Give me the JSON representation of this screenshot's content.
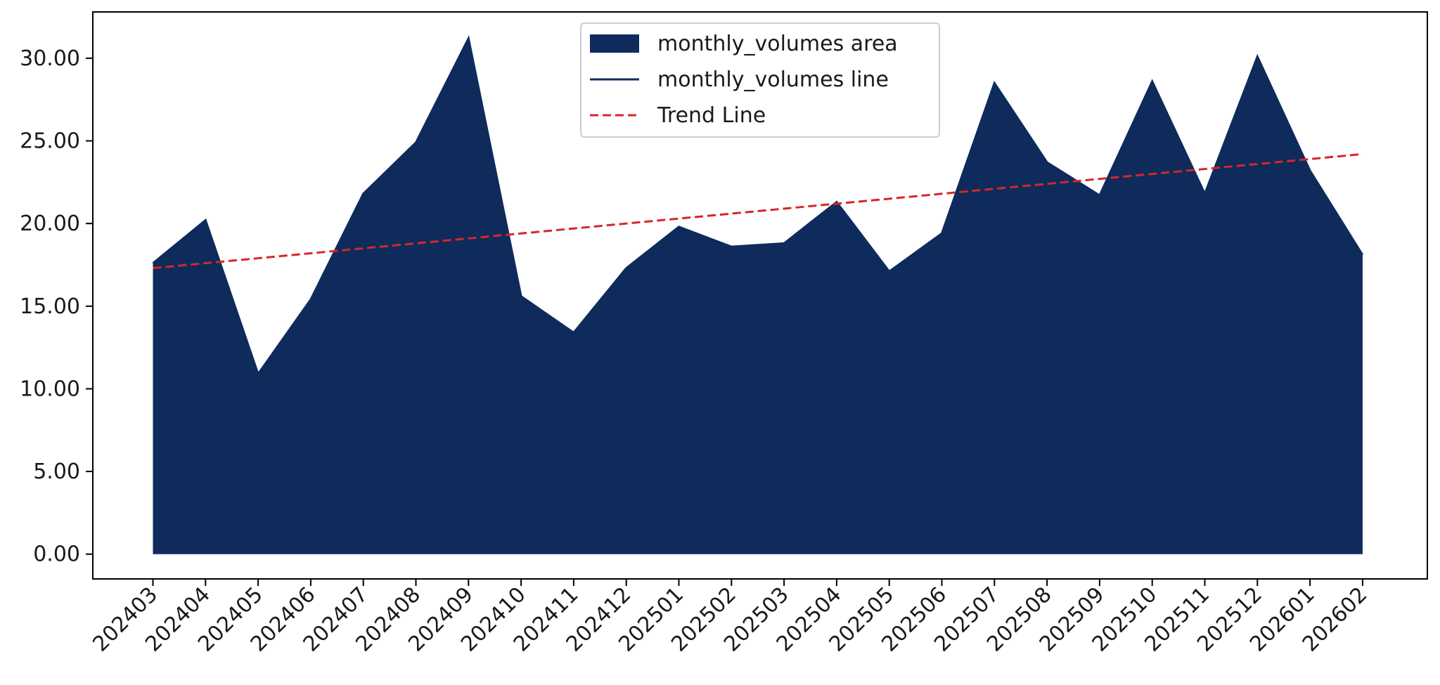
{
  "chart_data": {
    "type": "area",
    "categories": [
      "202403",
      "202404",
      "202405",
      "202406",
      "202407",
      "202408",
      "202409",
      "202410",
      "202411",
      "202412",
      "202501",
      "202502",
      "202503",
      "202504",
      "202505",
      "202506",
      "202507",
      "202508",
      "202509",
      "202510",
      "202511",
      "202512",
      "202601",
      "202602"
    ],
    "series": [
      {
        "name": "monthly_volumes area",
        "style": "filled-area",
        "color": "#0e2b5c",
        "values": [
          17.6,
          20.2,
          10.9,
          15.4,
          21.8,
          24.9,
          31.2,
          15.6,
          13.4,
          17.3,
          19.8,
          18.6,
          18.8,
          21.3,
          17.1,
          19.4,
          28.5,
          23.7,
          21.7,
          28.6,
          21.8,
          30.1,
          23.2,
          18.1
        ]
      },
      {
        "name": "monthly_volumes line",
        "style": "solid-line",
        "color": "#0e2b5c",
        "values": [
          17.6,
          20.2,
          10.9,
          15.4,
          21.8,
          24.9,
          31.2,
          15.6,
          13.4,
          17.3,
          19.8,
          18.6,
          18.8,
          21.3,
          17.1,
          19.4,
          28.5,
          23.7,
          21.7,
          28.6,
          21.8,
          30.1,
          23.2,
          18.1
        ]
      },
      {
        "name": "Trend Line",
        "style": "dashed-line",
        "color": "#d62728",
        "values": [
          17.3,
          17.6,
          17.9,
          18.2,
          18.5,
          18.8,
          19.1,
          19.4,
          19.7,
          20.0,
          20.3,
          20.6,
          20.9,
          21.2,
          21.5,
          21.8,
          22.1,
          22.4,
          22.7,
          23.0,
          23.3,
          23.6,
          23.9,
          24.2
        ]
      }
    ],
    "yticks": [
      "0.00",
      "5.00",
      "10.00",
      "15.00",
      "20.00",
      "25.00",
      "30.00"
    ],
    "ylim": [
      -1.5,
      32.8
    ],
    "legend_position": "top-center",
    "grid": false,
    "title": "",
    "xlabel": "",
    "ylabel": ""
  }
}
